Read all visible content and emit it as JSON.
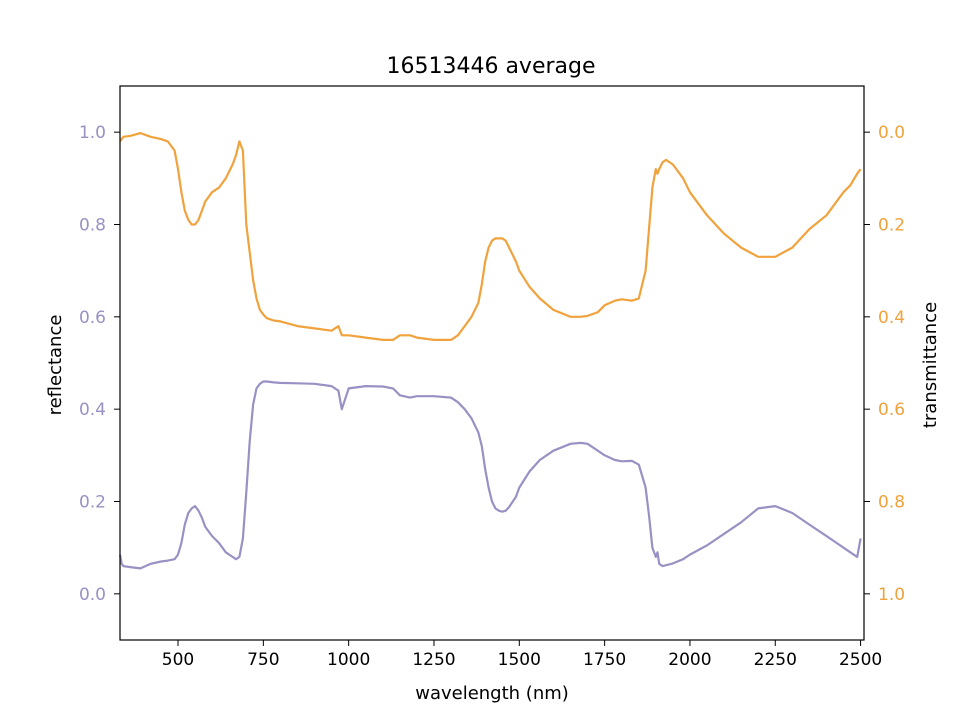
{
  "chart_data": {
    "type": "line",
    "title": "16513446 average",
    "xlabel": "wavelength (nm)",
    "ylabel_left": "reflectance",
    "ylabel_right": "transmittance",
    "xlim": [
      330,
      2510
    ],
    "ylim_left": [
      -0.1,
      1.1
    ],
    "ylim_right": [
      1.1,
      -0.1
    ],
    "right_axis_inverted": true,
    "grid": false,
    "x_ticks": [
      500,
      750,
      1000,
      1250,
      1500,
      1750,
      2000,
      2250,
      2500
    ],
    "y_ticks_left": [
      0.0,
      0.2,
      0.4,
      0.6,
      0.8,
      1.0
    ],
    "y_ticks_right": [
      0.0,
      0.2,
      0.4,
      0.6,
      0.8,
      1.0
    ],
    "colors": {
      "reflectance": "#9892c4",
      "transmittance": "#f0a23c",
      "axis": "#000000"
    },
    "series": [
      {
        "name": "reflectance",
        "axis": "left",
        "x": [
          330,
          335,
          340,
          360,
          390,
          420,
          450,
          470,
          490,
          500,
          510,
          520,
          530,
          540,
          550,
          560,
          570,
          580,
          590,
          600,
          620,
          640,
          660,
          670,
          680,
          690,
          700,
          710,
          720,
          730,
          740,
          750,
          760,
          780,
          800,
          850,
          900,
          950,
          970,
          980,
          1000,
          1050,
          1100,
          1130,
          1150,
          1180,
          1200,
          1250,
          1300,
          1320,
          1340,
          1360,
          1380,
          1390,
          1400,
          1410,
          1420,
          1430,
          1440,
          1450,
          1460,
          1470,
          1490,
          1500,
          1530,
          1560,
          1600,
          1650,
          1680,
          1700,
          1730,
          1750,
          1780,
          1800,
          1830,
          1850,
          1870,
          1880,
          1890,
          1900,
          1905,
          1910,
          1920,
          1930,
          1950,
          1980,
          2000,
          2050,
          2100,
          2150,
          2200,
          2250,
          2300,
          2350,
          2400,
          2430,
          2450,
          2470,
          2490,
          2500
        ],
        "y": [
          0.085,
          0.065,
          0.06,
          0.058,
          0.055,
          0.065,
          0.07,
          0.072,
          0.075,
          0.085,
          0.11,
          0.15,
          0.175,
          0.185,
          0.19,
          0.18,
          0.165,
          0.145,
          0.135,
          0.125,
          0.11,
          0.09,
          0.08,
          0.075,
          0.08,
          0.12,
          0.22,
          0.33,
          0.41,
          0.445,
          0.455,
          0.46,
          0.46,
          0.458,
          0.457,
          0.456,
          0.455,
          0.45,
          0.44,
          0.4,
          0.445,
          0.45,
          0.449,
          0.445,
          0.43,
          0.425,
          0.428,
          0.428,
          0.425,
          0.415,
          0.4,
          0.38,
          0.35,
          0.32,
          0.27,
          0.23,
          0.2,
          0.185,
          0.18,
          0.178,
          0.18,
          0.188,
          0.21,
          0.23,
          0.265,
          0.29,
          0.31,
          0.325,
          0.327,
          0.325,
          0.31,
          0.3,
          0.29,
          0.287,
          0.288,
          0.28,
          0.23,
          0.17,
          0.1,
          0.08,
          0.09,
          0.065,
          0.06,
          0.062,
          0.066,
          0.075,
          0.085,
          0.105,
          0.13,
          0.155,
          0.185,
          0.19,
          0.175,
          0.15,
          0.125,
          0.11,
          0.1,
          0.09,
          0.08,
          0.12
        ]
      },
      {
        "name": "transmittance",
        "axis": "right",
        "x": [
          330,
          340,
          360,
          390,
          420,
          450,
          470,
          490,
          500,
          510,
          520,
          530,
          540,
          550,
          560,
          570,
          580,
          590,
          600,
          620,
          640,
          660,
          670,
          680,
          690,
          700,
          710,
          720,
          730,
          740,
          750,
          760,
          780,
          800,
          850,
          900,
          950,
          970,
          980,
          1000,
          1050,
          1100,
          1130,
          1150,
          1180,
          1200,
          1250,
          1300,
          1320,
          1340,
          1360,
          1380,
          1390,
          1400,
          1410,
          1420,
          1430,
          1440,
          1450,
          1460,
          1470,
          1490,
          1500,
          1530,
          1560,
          1600,
          1650,
          1680,
          1700,
          1730,
          1750,
          1780,
          1800,
          1830,
          1850,
          1870,
          1880,
          1890,
          1900,
          1905,
          1910,
          1920,
          1930,
          1950,
          1980,
          2000,
          2050,
          2100,
          2150,
          2200,
          2250,
          2300,
          2350,
          2400,
          2430,
          2450,
          2470,
          2490,
          2500
        ],
        "y": [
          0.02,
          0.01,
          0.008,
          0.002,
          0.01,
          0.015,
          0.02,
          0.04,
          0.08,
          0.13,
          0.17,
          0.19,
          0.2,
          0.2,
          0.19,
          0.17,
          0.15,
          0.14,
          0.13,
          0.12,
          0.1,
          0.07,
          0.05,
          0.02,
          0.04,
          0.2,
          0.26,
          0.32,
          0.36,
          0.385,
          0.395,
          0.403,
          0.408,
          0.41,
          0.42,
          0.425,
          0.43,
          0.42,
          0.44,
          0.44,
          0.445,
          0.45,
          0.45,
          0.44,
          0.44,
          0.445,
          0.45,
          0.45,
          0.44,
          0.42,
          0.4,
          0.37,
          0.33,
          0.28,
          0.25,
          0.235,
          0.23,
          0.23,
          0.23,
          0.235,
          0.25,
          0.28,
          0.3,
          0.335,
          0.36,
          0.385,
          0.4,
          0.4,
          0.398,
          0.39,
          0.375,
          0.365,
          0.362,
          0.365,
          0.36,
          0.3,
          0.21,
          0.12,
          0.08,
          0.09,
          0.08,
          0.065,
          0.06,
          0.07,
          0.1,
          0.13,
          0.18,
          0.22,
          0.25,
          0.27,
          0.27,
          0.25,
          0.21,
          0.18,
          0.15,
          0.13,
          0.115,
          0.09,
          0.08
        ]
      }
    ]
  }
}
